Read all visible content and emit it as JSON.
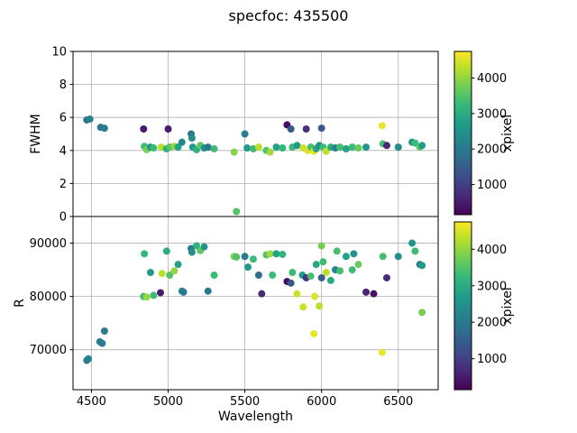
{
  "title": "specfoc: 435500",
  "background": "#ffffff",
  "chart_data": [
    {
      "type": "scatter",
      "panel": "top",
      "ylabel": "FWHM",
      "xlabel": "",
      "xlim": [
        4380,
        6760
      ],
      "ylim": [
        0,
        10
      ],
      "xticks": [
        4500,
        5000,
        5500,
        6000,
        6500
      ],
      "yticks": [
        0,
        2,
        4,
        6,
        8,
        10
      ],
      "grid": true,
      "colorbar": {
        "label": "xpixel",
        "ticks": [
          1000,
          2000,
          3000,
          4000
        ],
        "vmin": 150,
        "vmax": 4750,
        "colormap": "viridis"
      },
      "points": [
        [
          4470,
          5.85,
          1900
        ],
        [
          4490,
          5.9,
          2200
        ],
        [
          4560,
          5.4,
          2000
        ],
        [
          4585,
          5.35,
          2100
        ],
        [
          4840,
          5.3,
          500
        ],
        [
          4845,
          4.25,
          3300
        ],
        [
          4860,
          4.05,
          3800
        ],
        [
          4885,
          4.2,
          2600
        ],
        [
          4905,
          4.15,
          3300
        ],
        [
          4955,
          4.2,
          4300
        ],
        [
          4990,
          4.1,
          3000
        ],
        [
          5000,
          5.3,
          500
        ],
        [
          5010,
          4.2,
          3500
        ],
        [
          5040,
          4.25,
          4000
        ],
        [
          5065,
          4.2,
          2800
        ],
        [
          5090,
          4.5,
          2300
        ],
        [
          5150,
          5,
          2000
        ],
        [
          5155,
          4.75,
          2400
        ],
        [
          5160,
          4.2,
          2700
        ],
        [
          5185,
          4.05,
          3100
        ],
        [
          5210,
          4.3,
          3600
        ],
        [
          5235,
          4.15,
          2500
        ],
        [
          5260,
          4.2,
          2000
        ],
        [
          5300,
          4.1,
          3300
        ],
        [
          5430,
          3.9,
          3900
        ],
        [
          5445,
          0.3,
          3500
        ],
        [
          5500,
          5,
          2100
        ],
        [
          5515,
          4.15,
          2600
        ],
        [
          5555,
          4.1,
          3300
        ],
        [
          5590,
          4.2,
          4300
        ],
        [
          5640,
          4,
          3500
        ],
        [
          5665,
          3.9,
          4100
        ],
        [
          5705,
          4.2,
          2800
        ],
        [
          5745,
          4.15,
          3200
        ],
        [
          5775,
          5.55,
          300
        ],
        [
          5800,
          5.3,
          1400
        ],
        [
          5810,
          4.2,
          3300
        ],
        [
          5840,
          4.3,
          2700
        ],
        [
          5880,
          4.15,
          4400
        ],
        [
          5900,
          5.3,
          800
        ],
        [
          5910,
          4,
          4500
        ],
        [
          5930,
          4.2,
          3400
        ],
        [
          5950,
          3.95,
          4600
        ],
        [
          5965,
          4.1,
          2900
        ],
        [
          5985,
          4.3,
          2500
        ],
        [
          6000,
          5.35,
          1500
        ],
        [
          6010,
          4.2,
          3300
        ],
        [
          6030,
          3.95,
          4300
        ],
        [
          6060,
          4.2,
          3000
        ],
        [
          6090,
          4.15,
          2200
        ],
        [
          6120,
          4.2,
          3400
        ],
        [
          6160,
          4.1,
          2800
        ],
        [
          6200,
          4.2,
          3300
        ],
        [
          6240,
          4.15,
          3700
        ],
        [
          6290,
          4.2,
          2600
        ],
        [
          6395,
          5.5,
          4600
        ],
        [
          6400,
          4.4,
          3400
        ],
        [
          6425,
          4.3,
          700
        ],
        [
          6500,
          4.2,
          2400
        ],
        [
          6590,
          4.5,
          2500
        ],
        [
          6610,
          4.45,
          3300
        ],
        [
          6640,
          4.2,
          3600
        ],
        [
          6655,
          4.3,
          2700
        ]
      ]
    },
    {
      "type": "scatter",
      "panel": "bottom",
      "ylabel": "R",
      "xlabel": "Wavelength",
      "xlim": [
        4380,
        6760
      ],
      "ylim": [
        62500,
        95000
      ],
      "xticks": [
        4500,
        5000,
        5500,
        6000,
        6500
      ],
      "yticks": [
        70000,
        80000,
        90000
      ],
      "grid": true,
      "colorbar": {
        "label": "xpixel",
        "ticks": [
          1000,
          2000,
          3000,
          4000
        ],
        "vmin": 150,
        "vmax": 4750,
        "colormap": "viridis"
      },
      "points": [
        [
          4470,
          68000,
          1900
        ],
        [
          4480,
          68300,
          2200
        ],
        [
          4555,
          71500,
          2000
        ],
        [
          4570,
          71200,
          2100
        ],
        [
          4585,
          73500,
          2100
        ],
        [
          4840,
          80000,
          3300
        ],
        [
          4845,
          88000,
          3200
        ],
        [
          4860,
          79900,
          4000
        ],
        [
          4885,
          84500,
          2600
        ],
        [
          4905,
          80200,
          3300
        ],
        [
          4950,
          80700,
          500
        ],
        [
          4960,
          84300,
          4300
        ],
        [
          4990,
          88500,
          3000
        ],
        [
          5010,
          84000,
          3500
        ],
        [
          5040,
          84800,
          4000
        ],
        [
          5065,
          86000,
          2800
        ],
        [
          5090,
          81000,
          2300
        ],
        [
          5100,
          80800,
          2000
        ],
        [
          5150,
          89000,
          2000
        ],
        [
          5155,
          88300,
          2400
        ],
        [
          5185,
          89500,
          3100
        ],
        [
          5210,
          88600,
          3600
        ],
        [
          5235,
          89300,
          2500
        ],
        [
          5260,
          81000,
          2000
        ],
        [
          5300,
          84000,
          3300
        ],
        [
          5430,
          87500,
          3900
        ],
        [
          5445,
          87400,
          3500
        ],
        [
          5500,
          87500,
          2100
        ],
        [
          5520,
          85500,
          2600
        ],
        [
          5555,
          87000,
          3300
        ],
        [
          5590,
          84000,
          1800
        ],
        [
          5610,
          80500,
          700
        ],
        [
          5640,
          87800,
          3500
        ],
        [
          5665,
          88000,
          4100
        ],
        [
          5680,
          84000,
          3300
        ],
        [
          5705,
          88000,
          2800
        ],
        [
          5745,
          87900,
          3200
        ],
        [
          5775,
          82800,
          300
        ],
        [
          5800,
          82500,
          1400
        ],
        [
          5810,
          84500,
          3300
        ],
        [
          5840,
          80500,
          4400
        ],
        [
          5875,
          84000,
          2700
        ],
        [
          5880,
          78000,
          4400
        ],
        [
          5900,
          83500,
          800
        ],
        [
          5930,
          83800,
          3400
        ],
        [
          5950,
          73000,
          4600
        ],
        [
          5955,
          80000,
          4500
        ],
        [
          5965,
          86000,
          2900
        ],
        [
          5985,
          78200,
          4300
        ],
        [
          6000,
          89500,
          3800
        ],
        [
          6000,
          83500,
          1500
        ],
        [
          6010,
          86500,
          3300
        ],
        [
          6030,
          84500,
          4300
        ],
        [
          6060,
          83000,
          3000
        ],
        [
          6090,
          85000,
          2200
        ],
        [
          6100,
          88500,
          3400
        ],
        [
          6120,
          84800,
          3400
        ],
        [
          6160,
          87500,
          2800
        ],
        [
          6200,
          85000,
          3300
        ],
        [
          6210,
          88000,
          2500
        ],
        [
          6240,
          86000,
          3700
        ],
        [
          6290,
          80800,
          600
        ],
        [
          6340,
          80500,
          400
        ],
        [
          6395,
          69500,
          4600
        ],
        [
          6400,
          87500,
          3400
        ],
        [
          6425,
          83500,
          700
        ],
        [
          6500,
          87500,
          2400
        ],
        [
          6590,
          90000,
          2500
        ],
        [
          6610,
          88500,
          3300
        ],
        [
          6640,
          86000,
          2000
        ],
        [
          6655,
          85800,
          2700
        ],
        [
          6655,
          77000,
          3800
        ]
      ]
    }
  ]
}
